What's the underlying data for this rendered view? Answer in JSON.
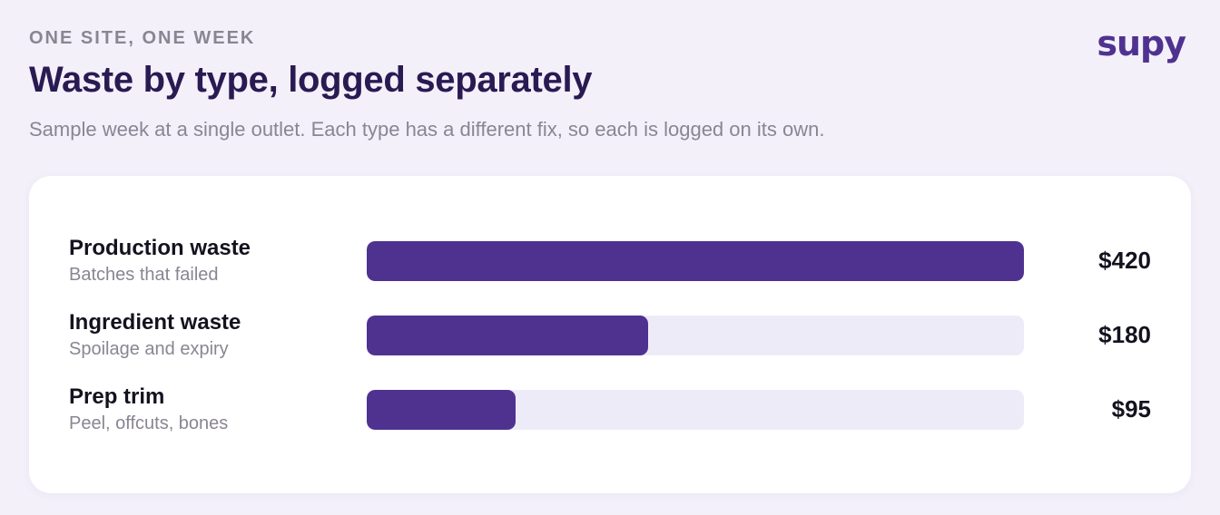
{
  "header": {
    "eyebrow": "ONE SITE, ONE WEEK",
    "title": "Waste by type, logged separately",
    "subtitle": "Sample week at a single outlet. Each type has a different fix, so each is logged on its own.",
    "logo_text": "supy"
  },
  "colors": {
    "bar_fill": "#4f3290",
    "bar_track": "#eeebf8",
    "title": "#2a1a52",
    "muted": "#8a8592",
    "background": "#f3f0fa"
  },
  "chart_data": {
    "type": "bar",
    "orientation": "horizontal",
    "categories": [
      "Production waste",
      "Ingredient waste",
      "Prep trim"
    ],
    "descriptions": [
      "Batches that failed",
      "Spoilage and expiry",
      "Peel, offcuts, bones"
    ],
    "values": [
      420,
      180,
      95
    ],
    "value_labels": [
      "$420",
      "$180",
      "$95"
    ],
    "unit": "$",
    "xlim": [
      0,
      420
    ],
    "grid": false,
    "title": "Waste by type, logged separately"
  }
}
